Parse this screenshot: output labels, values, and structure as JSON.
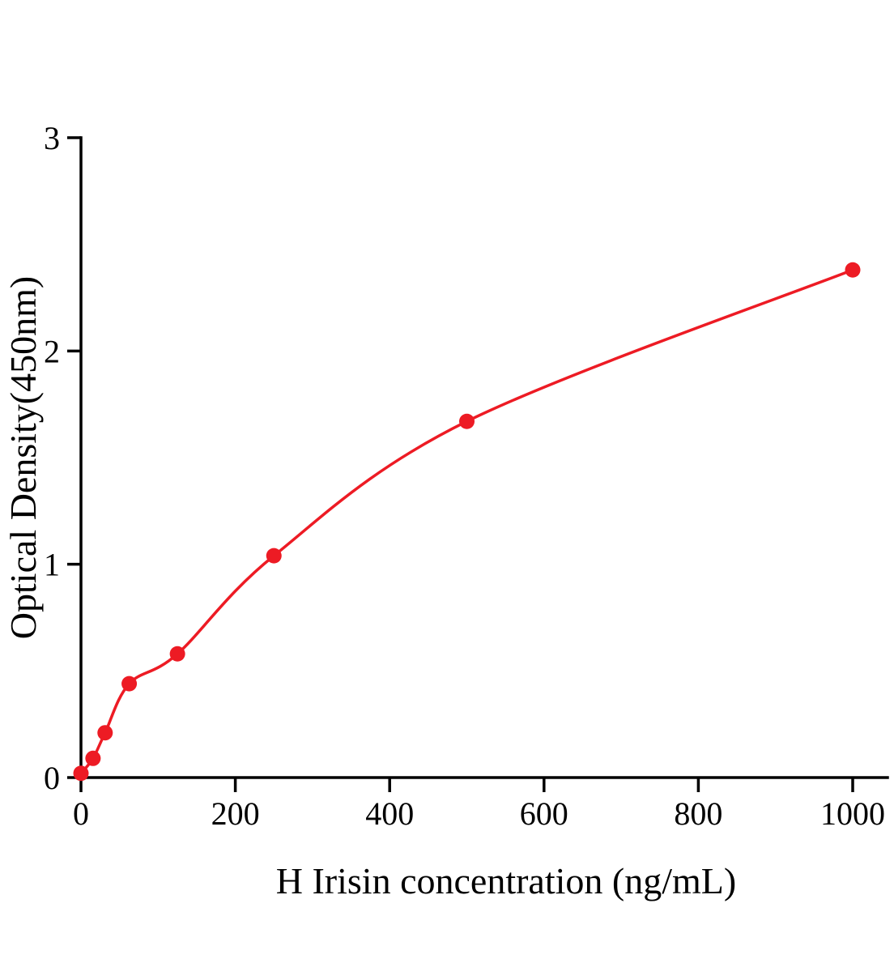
{
  "chart_data": {
    "type": "scatter",
    "title": "",
    "xlabel": "H Irisin concentration (ng/mL)",
    "ylabel": "Optical Density(450nm)",
    "xlim": [
      0,
      1045
    ],
    "ylim": [
      0,
      3
    ],
    "x_ticks": [
      0,
      200,
      400,
      600,
      800,
      1000
    ],
    "y_ticks": [
      0,
      1,
      2,
      3
    ],
    "grid": false,
    "legend_position": "none",
    "curve_color": "#ed1b24",
    "axis_color": "#000000",
    "points": [
      {
        "x": 0,
        "y": 0.02
      },
      {
        "x": 15.6,
        "y": 0.09
      },
      {
        "x": 31.25,
        "y": 0.21
      },
      {
        "x": 62.5,
        "y": 0.44
      },
      {
        "x": 125,
        "y": 0.58
      },
      {
        "x": 250,
        "y": 1.04
      },
      {
        "x": 500,
        "y": 1.67
      },
      {
        "x": 1000,
        "y": 2.38
      }
    ]
  }
}
